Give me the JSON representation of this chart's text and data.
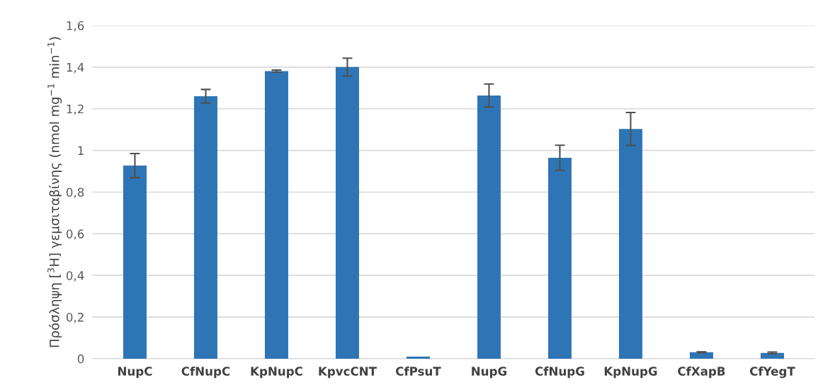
{
  "chart_data": {
    "type": "bar",
    "ylabel": "Πρόσληψη [$^{3}$H] γεμσιταβίνης (nmol mg$^{−1}$ min$^{−1}$)",
    "categories": [
      "NupC",
      "CfNupC",
      "KpNupC",
      "KpvcCNT",
      "CfPsuT",
      "NupG",
      "CfNupG",
      "KpNupG",
      "CfXapB",
      "CfYegT"
    ],
    "values": [
      0.927,
      1.26,
      1.381,
      1.4,
      0.01,
      1.264,
      0.965,
      1.103,
      0.031,
      0.028
    ],
    "errors": [
      0.058,
      0.033,
      0.005,
      0.043,
      null,
      0.055,
      0.06,
      0.079,
      0.002,
      0.004
    ],
    "color": "#2e75b6",
    "ylim": [
      0,
      1.6
    ],
    "yticks": [
      {
        "value": 0,
        "label": "0"
      },
      {
        "value": 0.2,
        "label": "0,2"
      },
      {
        "value": 0.4,
        "label": "0,4"
      },
      {
        "value": 0.6,
        "label": "0,6"
      },
      {
        "value": 0.8,
        "label": "0,8"
      },
      {
        "value": 1,
        "label": "1"
      },
      {
        "value": 1.2,
        "label": "1,2"
      },
      {
        "value": 1.4,
        "label": "1,4"
      },
      {
        "value": 1.6,
        "label": "1,6"
      }
    ],
    "grid": "y"
  }
}
